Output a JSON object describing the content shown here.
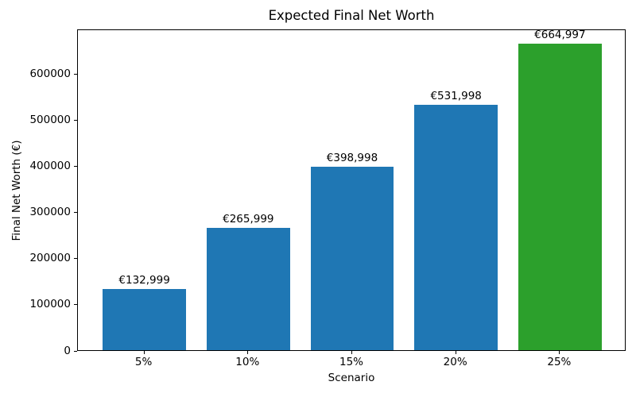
{
  "chart_data": {
    "type": "bar",
    "title": "Expected Final Net Worth",
    "xlabel": "Scenario",
    "ylabel": "Final Net Worth (€)",
    "categories": [
      "5%",
      "10%",
      "15%",
      "20%",
      "25%"
    ],
    "values": [
      132999,
      265999,
      398998,
      531998,
      664997
    ],
    "bar_labels": [
      "€132,999",
      "€265,999",
      "€398,998",
      "€531,998",
      "€664,997"
    ],
    "bar_colors": [
      "#1f77b4",
      "#1f77b4",
      "#1f77b4",
      "#1f77b4",
      "#2ca02c"
    ],
    "ytick_values": [
      0,
      100000,
      200000,
      300000,
      400000,
      500000,
      600000
    ],
    "ytick_labels": [
      "0",
      "100000",
      "200000",
      "300000",
      "400000",
      "500000",
      "600000"
    ],
    "ylim": [
      0,
      698247
    ],
    "xlim_units": 5.28,
    "first_bar_center_unit": 0.64,
    "bar_width_unit": 0.8,
    "grid": false,
    "legend_position": "none",
    "colors": {
      "bar_default": "#1f77b4",
      "bar_highlight": "#2ca02c",
      "axis": "#000000",
      "background": "#ffffff"
    }
  }
}
